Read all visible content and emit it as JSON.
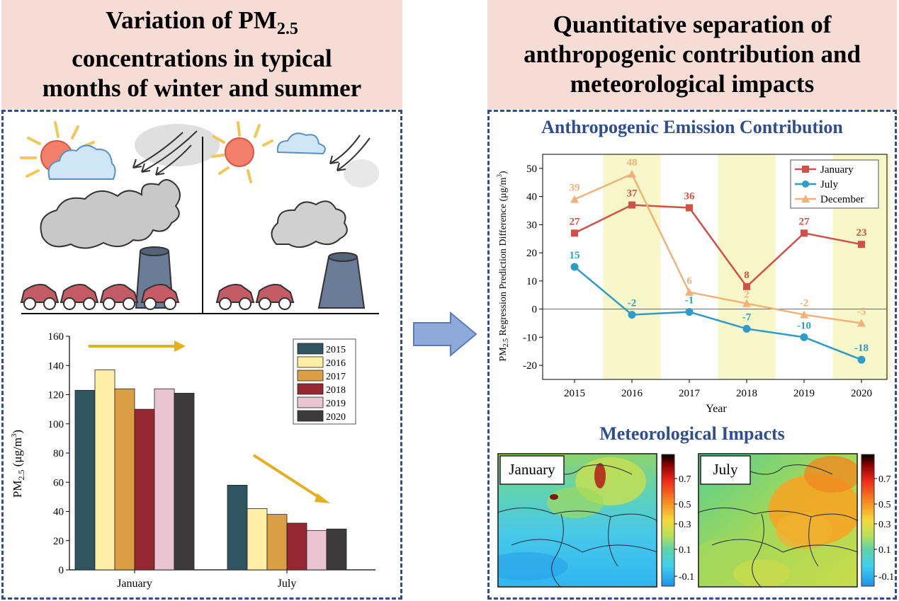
{
  "left_panel": {
    "title_line1_prefix": "Variation of PM",
    "title_line1_sub": "2.5",
    "title_line2": "concentrations in typical",
    "title_line3": "months of winter and summer"
  },
  "right_panel": {
    "title_line1": "Quantitative separation of",
    "title_line2": "anthropogenic contribution and",
    "title_line3": "meteorological impacts",
    "anthro_title": "Anthropogenic Emission Contribution",
    "meteo_title": "Meteorological Impacts",
    "map_january_label": "January",
    "map_july_label": "July",
    "colorbar_ticks": [
      "0.7",
      "0.5",
      "0.3",
      "0.1",
      "-0.1"
    ]
  },
  "colors": {
    "header_bg": "#f5ddd6",
    "border": "#2f4e8c",
    "arrow_fill": "#8eaadb",
    "trend_arrow": "#e3b020"
  },
  "chart_data": [
    {
      "type": "bar",
      "categories": [
        "January",
        "July"
      ],
      "series": [
        {
          "name": "2015",
          "color": "#2f5560",
          "values": [
            123,
            58
          ]
        },
        {
          "name": "2016",
          "color": "#fdf0a6",
          "values": [
            137,
            42
          ]
        },
        {
          "name": "2017",
          "color": "#dc9e45",
          "values": [
            124,
            38
          ]
        },
        {
          "name": "2018",
          "color": "#972731",
          "values": [
            110,
            32
          ]
        },
        {
          "name": "2019",
          "color": "#ebc4d2",
          "values": [
            124,
            27
          ]
        },
        {
          "name": "2020",
          "color": "#3c3a3a",
          "values": [
            121,
            28
          ]
        }
      ],
      "ylabel_prefix": "PM",
      "ylabel_sub": "2.5",
      "ylabel_suffix": " (μg/m",
      "ylabel_sup": "3",
      "ylabel_close": ")",
      "ylim": [
        0,
        160
      ],
      "yticks": [
        0,
        20,
        40,
        60,
        80,
        100,
        120,
        140,
        160
      ],
      "legend": "top-right"
    },
    {
      "type": "line",
      "x": [
        2015,
        2016,
        2017,
        2018,
        2019,
        2020
      ],
      "series": [
        {
          "name": "January",
          "color": "#d1504a",
          "marker": "square",
          "values": [
            27,
            37,
            36,
            8,
            27,
            23
          ]
        },
        {
          "name": "July",
          "color": "#2f9cc7",
          "marker": "circle",
          "values": [
            15,
            -2,
            -1,
            -7,
            -10,
            -18
          ]
        },
        {
          "name": "December",
          "color": "#f0b27a",
          "marker": "triangle",
          "values": [
            39,
            48,
            6,
            2,
            -2,
            -5
          ]
        }
      ],
      "xlabel": "Year",
      "ylabel_prefix": "PM",
      "ylabel_sub": "2.5",
      "ylabel_suffix": " Regression Prediction Difference (μg/m",
      "ylabel_sup": "3",
      "ylabel_close": ")",
      "ylim": [
        -25,
        55
      ],
      "yticks": [
        -20,
        -10,
        0,
        10,
        20,
        30,
        40,
        50
      ],
      "highlight_years": [
        2016,
        2018,
        2020
      ],
      "highlight_color": "#f7f7c9",
      "legend": "top-right"
    }
  ]
}
